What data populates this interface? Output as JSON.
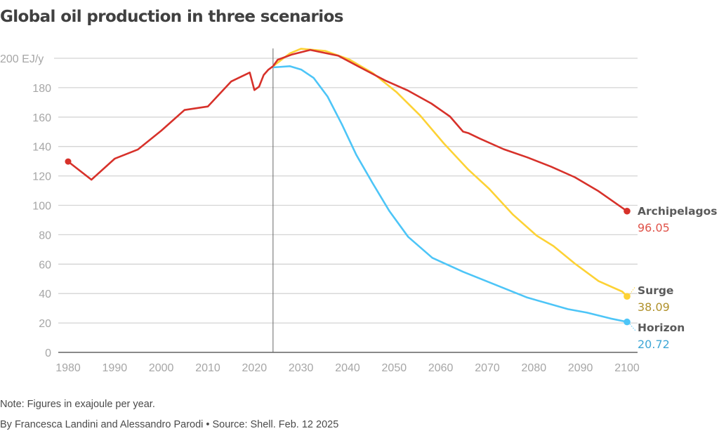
{
  "title": "Global oil production in three scenarios",
  "note": "Note: Figures in exajoule per year.",
  "byline": "By Francesca Landini and Alessandro Parodi • Source: Shell. Feb. 12 2025",
  "chart_data": {
    "type": "line",
    "title": "Global oil production in three scenarios",
    "ylabel_unit": "EJ/y",
    "xlim": [
      1980,
      2100
    ],
    "ylim": [
      0,
      200
    ],
    "grid": true,
    "x_ticks": [
      "1980",
      "1990",
      "2000",
      "2010",
      "2020",
      "2030",
      "2040",
      "2050",
      "2060",
      "2070",
      "2080",
      "2090",
      "2100"
    ],
    "y_ticks": [
      "0",
      "20",
      "40",
      "60",
      "80",
      "100",
      "120",
      "140",
      "160",
      "180",
      "200 EJ/y"
    ],
    "reference_line_x": 2024,
    "historical": {
      "color": "#d7312a",
      "x": [
        1980,
        1985,
        1990,
        1995,
        2000,
        2005,
        2010,
        2015,
        2019,
        2020,
        2021,
        2022,
        2023,
        2024
      ],
      "y": [
        129.8,
        117.4,
        131.7,
        138,
        150.8,
        164.8,
        167.2,
        184.2,
        190.3,
        178.4,
        180.7,
        188.7,
        192.2,
        194.6
      ]
    },
    "series": [
      {
        "name": "Archipelagos",
        "end_value": "96.05",
        "color": "#d7312a",
        "label_color": "#e0534a",
        "x": [
          2024,
          2025,
          2028,
          2032,
          2038,
          2043,
          2048,
          2053,
          2058,
          2062,
          2064.8,
          2066,
          2068.4,
          2073.5,
          2078.6,
          2083.7,
          2088.8,
          2093.9,
          2100
        ],
        "y": [
          194.6,
          199,
          202.5,
          205.7,
          201.7,
          193.3,
          185,
          178,
          169.2,
          160.4,
          150.1,
          149,
          145.4,
          138.2,
          132.6,
          126.3,
          119.1,
          109.6,
          96.05
        ]
      },
      {
        "name": "Surge",
        "end_value": "38.09",
        "color": "#fdd235",
        "label_color": "#b0912b",
        "x": [
          2024,
          2027.6,
          2030,
          2035.2,
          2040.3,
          2045.4,
          2050.5,
          2055.6,
          2060.7,
          2065.8,
          2070.4,
          2075.5,
          2080.6,
          2084.2,
          2088.8,
          2093.9,
          2099,
          2100
        ],
        "y": [
          194.6,
          203.3,
          206.5,
          205,
          199.3,
          190,
          177,
          161,
          142,
          124.7,
          111.2,
          93.7,
          79.4,
          72.3,
          60.4,
          48.5,
          41.3,
          38.09
        ]
      },
      {
        "name": "Horizon",
        "end_value": "20.72",
        "color": "#4dc5f7",
        "label_color": "#3fa7d6",
        "x": [
          2024,
          2027.6,
          2030.1,
          2032.7,
          2035.7,
          2038.8,
          2041.9,
          2045.4,
          2049,
          2053,
          2058.2,
          2064.8,
          2071,
          2078.6,
          2087.3,
          2091.4,
          2096.5,
          2100
        ],
        "y": [
          193.8,
          194.6,
          192.2,
          186.7,
          174,
          155,
          134.2,
          115,
          96,
          78.6,
          64.3,
          54.8,
          46.9,
          37.3,
          29.4,
          27,
          23,
          20.72
        ]
      }
    ]
  }
}
